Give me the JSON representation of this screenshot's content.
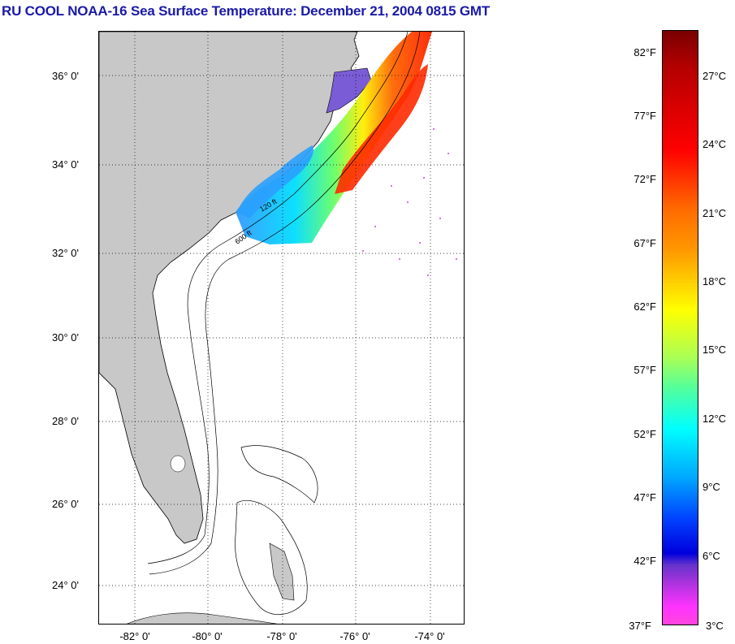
{
  "title": "RU COOL  NOAA-16  Sea Surface Temperature:  December 21, 2004 0815 GMT",
  "map": {
    "lat_labels": [
      "36° 0'",
      "34° 0'",
      "32° 0'",
      "30° 0'",
      "28° 0'",
      "26° 0'",
      "24° 0'"
    ],
    "lon_labels": [
      "-82° 0'",
      "-80° 0'",
      "-78° 0'",
      "-76° 0'",
      "-74° 0'"
    ],
    "contour_labels": [
      "120 ft",
      "600 ft"
    ],
    "colors": {
      "land": "#c8c8c8",
      "ocean_nodata": "#ffffff",
      "grid": "#000000"
    }
  },
  "colorbar": {
    "fahrenheit": [
      "82°F",
      "77°F",
      "72°F",
      "67°F",
      "62°F",
      "57°F",
      "52°F",
      "47°F",
      "42°F",
      "37°F"
    ],
    "celsius": [
      "27°C",
      "24°C",
      "21°C",
      "18°C",
      "15°C",
      "12°C",
      "9°C",
      "6°C",
      "3°C"
    ]
  }
}
